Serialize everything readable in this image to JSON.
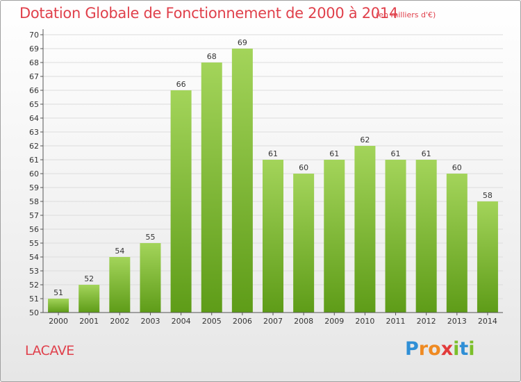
{
  "header": {
    "title": "Dotation Globale de Fonctionnement de 2000 à 2014",
    "unit_note": "(en milliers d'€)"
  },
  "commune_name": "LACAVE",
  "logo": {
    "text": "Proxiti",
    "letters": [
      "P",
      "r",
      "o",
      "x",
      "i",
      "t",
      "i"
    ],
    "colors": [
      "#2f8fd6",
      "#ef8a22",
      "#e23b3b",
      "#7bbf2a"
    ]
  },
  "chart_data": {
    "type": "bar",
    "categories": [
      "2000",
      "2001",
      "2002",
      "2003",
      "2004",
      "2005",
      "2006",
      "2007",
      "2008",
      "2009",
      "2010",
      "2011",
      "2012",
      "2013",
      "2014"
    ],
    "values": [
      51,
      52,
      54,
      55,
      66,
      68,
      69,
      61,
      60,
      61,
      62,
      61,
      61,
      60,
      58
    ],
    "data_labels": [
      "51",
      "52",
      "54",
      "55",
      "66",
      "68",
      "69",
      "61",
      "60",
      "61",
      "62",
      "61",
      "61",
      "60",
      "58"
    ],
    "title": "Dotation Globale de Fonctionnement de 2000 à 2014",
    "subtitle": "(en milliers d'€)",
    "xlabel": "",
    "ylabel": "",
    "ylim": [
      50,
      70
    ],
    "yticks": [
      50,
      51,
      52,
      53,
      54,
      55,
      56,
      57,
      58,
      59,
      60,
      61,
      62,
      63,
      64,
      65,
      66,
      67,
      68,
      69,
      70
    ],
    "grid": true,
    "colors": {
      "bar_top": "#a3d45a",
      "bar_bottom": "#5e9c18",
      "text": "#333333",
      "axis": "#555555"
    }
  }
}
